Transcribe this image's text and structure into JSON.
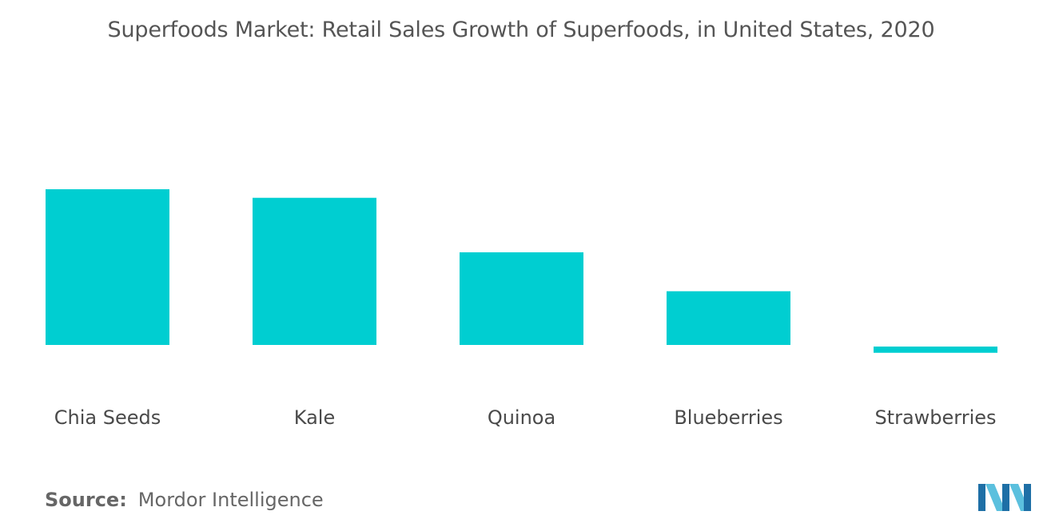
{
  "chart_data": {
    "type": "bar",
    "title": "Superfoods Market: Retail Sales Growth of Superfoods, in United States, 2020",
    "categories": [
      "Chia Seeds",
      "Kale",
      "Quinoa",
      "Blueberries",
      "Strawberries"
    ],
    "values": [
      100,
      94.5,
      59.5,
      34.5,
      -4
    ],
    "xlabel": "",
    "ylabel": "",
    "ylim": [
      -10,
      100
    ],
    "grid": false,
    "legend": "none",
    "bar_color": "#00CED1"
  },
  "source": {
    "label": "Source:",
    "text": "Mordor Intelligence"
  },
  "logo": {
    "icon": "mordor-intelligence-logo-icon",
    "colors": [
      "#5bc0de",
      "#1e6fa6"
    ]
  }
}
